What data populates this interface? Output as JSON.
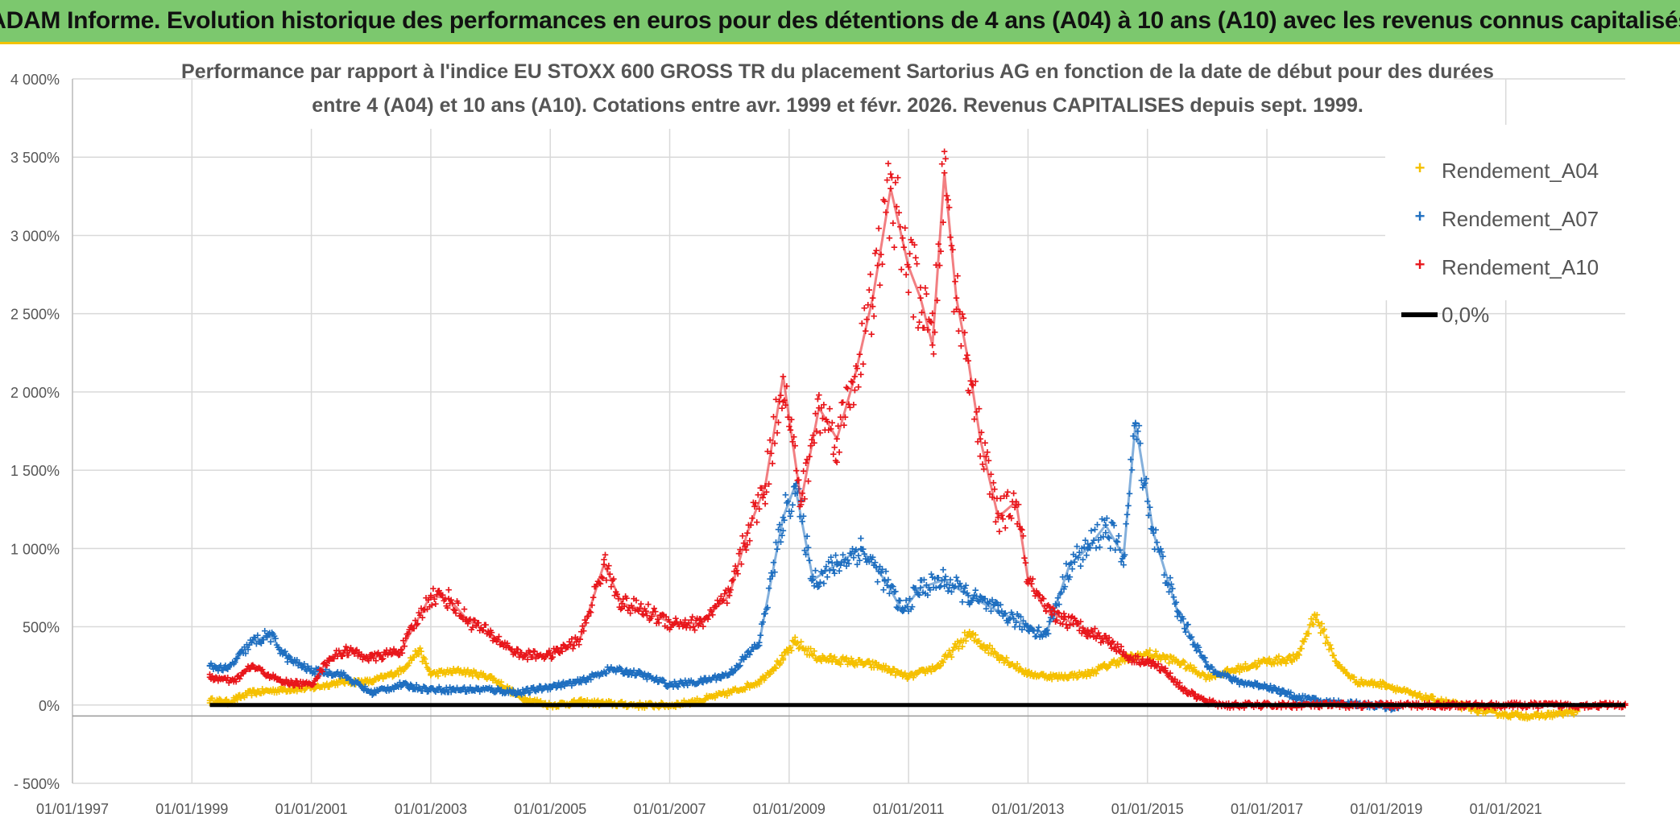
{
  "banner": {
    "title": "ADAM Informe. Evolution historique des performances en euros pour des détentions de 4 ans (A04) à 10 ans (A10) avec les revenus connus capitalisés"
  },
  "colors": {
    "A04": "#f5c000",
    "A07": "#1f6fc0",
    "A10": "#e8161b",
    "zero": "#000000",
    "banner": "#7cc86e",
    "grid": "#d9d9d9"
  },
  "chart_data": {
    "type": "scatter",
    "title_line1": "Performance par rapport à l'indice EU STOXX 600 GROSS TR  du placement Sartorius AG en fonction de la date de début pour des durées",
    "title_line2": "entre 4 (A04) et 10 ans (A10). Cotations entre avr. 1999 et févr. 2026. Revenus CAPITALISES depuis sept. 1999.",
    "ylim": [
      -500,
      4000
    ],
    "y_ticks": [
      -500,
      0,
      500,
      1000,
      1500,
      2000,
      2500,
      3000,
      3500,
      4000
    ],
    "y_tick_labels": [
      "- 500%",
      "0%",
      "500%",
      "1 000%",
      "1 500%",
      "2 000%",
      "2 500%",
      "3 000%",
      "3 500%",
      "4 000%"
    ],
    "xlim": [
      1997.0,
      2023.0
    ],
    "x_ticks": [
      1997,
      1999,
      2001,
      2003,
      2005,
      2007,
      2009,
      2011,
      2013,
      2015,
      2017,
      2019,
      2021
    ],
    "x_tick_labels": [
      "01/01/1997",
      "01/01/1999",
      "01/01/2001",
      "01/01/2003",
      "01/01/2005",
      "01/01/2007",
      "01/01/2009",
      "01/01/2011",
      "01/01/2013",
      "01/01/2015",
      "01/01/2017",
      "01/01/2019",
      "01/01/2021"
    ],
    "legend_position": "top-right",
    "legend": [
      "Rendement_A04",
      "Rendement_A07",
      "Rendement_A10",
      "0,0%"
    ],
    "series": [
      {
        "name": "Rendement_A04",
        "x_range": [
          1999.3,
          2022.2
        ],
        "points": [
          [
            1999.3,
            30
          ],
          [
            1999.6,
            20
          ],
          [
            2000.0,
            80
          ],
          [
            2000.5,
            100
          ],
          [
            2001.0,
            110
          ],
          [
            2001.5,
            150
          ],
          [
            2002.0,
            150
          ],
          [
            2002.5,
            220
          ],
          [
            2002.8,
            350
          ],
          [
            2003.0,
            200
          ],
          [
            2003.5,
            220
          ],
          [
            2004.0,
            180
          ],
          [
            2004.5,
            50
          ],
          [
            2005.0,
            0
          ],
          [
            2005.5,
            20
          ],
          [
            2006.0,
            10
          ],
          [
            2006.5,
            0
          ],
          [
            2007.0,
            0
          ],
          [
            2007.5,
            30
          ],
          [
            2008.0,
            80
          ],
          [
            2008.5,
            150
          ],
          [
            2008.9,
            300
          ],
          [
            2009.1,
            400
          ],
          [
            2009.5,
            300
          ],
          [
            2010.0,
            280
          ],
          [
            2010.5,
            250
          ],
          [
            2011.0,
            180
          ],
          [
            2011.5,
            250
          ],
          [
            2012.0,
            450
          ],
          [
            2012.5,
            320
          ],
          [
            2013.0,
            200
          ],
          [
            2013.5,
            180
          ],
          [
            2014.0,
            200
          ],
          [
            2014.5,
            280
          ],
          [
            2015.0,
            330
          ],
          [
            2015.5,
            280
          ],
          [
            2016.0,
            180
          ],
          [
            2016.5,
            230
          ],
          [
            2017.0,
            280
          ],
          [
            2017.5,
            300
          ],
          [
            2017.8,
            580
          ],
          [
            2018.2,
            250
          ],
          [
            2018.5,
            150
          ],
          [
            2019.0,
            130
          ],
          [
            2019.5,
            60
          ],
          [
            2020.0,
            20
          ],
          [
            2020.5,
            -30
          ],
          [
            2021.0,
            -60
          ],
          [
            2021.5,
            -70
          ],
          [
            2022.0,
            -50
          ],
          [
            2022.2,
            -40
          ]
        ]
      },
      {
        "name": "Rendement_A07",
        "x_range": [
          1999.3,
          2019.2
        ],
        "points": [
          [
            1999.3,
            250
          ],
          [
            1999.6,
            230
          ],
          [
            2000.0,
            400
          ],
          [
            2000.3,
            450
          ],
          [
            2000.6,
            300
          ],
          [
            2001.0,
            220
          ],
          [
            2001.5,
            200
          ],
          [
            2002.0,
            80
          ],
          [
            2002.5,
            130
          ],
          [
            2003.0,
            100
          ],
          [
            2003.5,
            100
          ],
          [
            2004.0,
            100
          ],
          [
            2004.5,
            80
          ],
          [
            2005.0,
            120
          ],
          [
            2005.5,
            150
          ],
          [
            2006.0,
            230
          ],
          [
            2006.5,
            200
          ],
          [
            2007.0,
            130
          ],
          [
            2007.5,
            150
          ],
          [
            2008.0,
            200
          ],
          [
            2008.5,
            400
          ],
          [
            2008.9,
            1200
          ],
          [
            2009.1,
            1400
          ],
          [
            2009.4,
            800
          ],
          [
            2009.8,
            900
          ],
          [
            2010.2,
            1000
          ],
          [
            2010.6,
            800
          ],
          [
            2010.9,
            600
          ],
          [
            2011.2,
            750
          ],
          [
            2011.6,
            800
          ],
          [
            2012.0,
            700
          ],
          [
            2012.5,
            600
          ],
          [
            2013.0,
            500
          ],
          [
            2013.3,
            450
          ],
          [
            2013.7,
            900
          ],
          [
            2014.0,
            1000
          ],
          [
            2014.3,
            1150
          ],
          [
            2014.6,
            950
          ],
          [
            2014.8,
            1800
          ],
          [
            2015.1,
            1100
          ],
          [
            2015.5,
            600
          ],
          [
            2016.0,
            250
          ],
          [
            2016.5,
            150
          ],
          [
            2017.0,
            120
          ],
          [
            2017.5,
            50
          ],
          [
            2018.0,
            20
          ],
          [
            2018.5,
            10
          ],
          [
            2019.0,
            -10
          ],
          [
            2019.2,
            -20
          ]
        ]
      },
      {
        "name": "Rendement_A10",
        "x_range": [
          1999.3,
          2023.0
        ],
        "points": [
          [
            1999.3,
            180
          ],
          [
            1999.7,
            150
          ],
          [
            2000.0,
            250
          ],
          [
            2000.5,
            150
          ],
          [
            2001.0,
            130
          ],
          [
            2001.3,
            300
          ],
          [
            2001.6,
            350
          ],
          [
            2002.0,
            300
          ],
          [
            2002.5,
            350
          ],
          [
            2003.0,
            700
          ],
          [
            2003.3,
            680
          ],
          [
            2003.6,
            550
          ],
          [
            2004.0,
            450
          ],
          [
            2004.5,
            320
          ],
          [
            2005.0,
            320
          ],
          [
            2005.5,
            420
          ],
          [
            2005.9,
            900
          ],
          [
            2006.2,
            650
          ],
          [
            2006.6,
            600
          ],
          [
            2007.0,
            530
          ],
          [
            2007.5,
            520
          ],
          [
            2008.0,
            700
          ],
          [
            2008.3,
            1100
          ],
          [
            2008.6,
            1400
          ],
          [
            2008.9,
            2100
          ],
          [
            2009.2,
            1300
          ],
          [
            2009.5,
            1900
          ],
          [
            2009.8,
            1700
          ],
          [
            2010.1,
            2100
          ],
          [
            2010.4,
            2600
          ],
          [
            2010.7,
            3300
          ],
          [
            2011.0,
            2800
          ],
          [
            2011.2,
            2600
          ],
          [
            2011.4,
            2300
          ],
          [
            2011.6,
            3400
          ],
          [
            2011.8,
            2600
          ],
          [
            2012.0,
            2200
          ],
          [
            2012.2,
            1700
          ],
          [
            2012.5,
            1200
          ],
          [
            2012.8,
            1300
          ],
          [
            2013.0,
            800
          ],
          [
            2013.3,
            600
          ],
          [
            2013.6,
            550
          ],
          [
            2014.0,
            480
          ],
          [
            2014.4,
            400
          ],
          [
            2014.7,
            300
          ],
          [
            2015.0,
            280
          ],
          [
            2015.3,
            220
          ],
          [
            2015.6,
            100
          ],
          [
            2016.0,
            20
          ],
          [
            2016.3,
            0
          ],
          [
            2017.0,
            0
          ],
          [
            2019.0,
            0
          ],
          [
            2021.0,
            0
          ],
          [
            2023.0,
            0
          ]
        ]
      },
      {
        "name": "0,0%",
        "line": [
          [
            1999.3,
            0
          ],
          [
            2023.0,
            0
          ]
        ]
      }
    ]
  }
}
